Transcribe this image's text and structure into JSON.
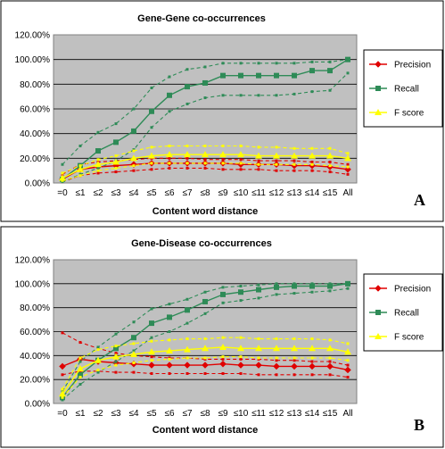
{
  "chart_data": [
    {
      "type": "line",
      "panel": "A",
      "title": "Gene-Gene co-occurrences",
      "xlabel": "Content word distance",
      "ylabel": "",
      "categories": [
        "=0",
        "≤1",
        "≤2",
        "≤3",
        "≤4",
        "≤5",
        "≤6",
        "≤7",
        "≤8",
        "≤9",
        "≤10",
        "≤11",
        "≤12",
        "≤13",
        "≤14",
        "≤15",
        "All"
      ],
      "y_ticks": [
        "0.00%",
        "20.00%",
        "40.00%",
        "60.00%",
        "80.00%",
        "100.00%",
        "120.00%"
      ],
      "ylim": [
        0,
        120
      ],
      "grid": true,
      "legend_position": "right",
      "series": [
        {
          "name": "Precision",
          "color": "#e00000",
          "marker": "diamond",
          "values": [
            3,
            11,
            13,
            14,
            15,
            16,
            16,
            16,
            16,
            16,
            15,
            15,
            15,
            14,
            14,
            13,
            11
          ],
          "upper": [
            7,
            15,
            17,
            18,
            19,
            20,
            20,
            20,
            19,
            19,
            19,
            18,
            18,
            18,
            17,
            17,
            15
          ],
          "lower": [
            1,
            6,
            8,
            9,
            10,
            11,
            12,
            12,
            12,
            11,
            11,
            11,
            10,
            10,
            10,
            9,
            7
          ]
        },
        {
          "name": "Recall",
          "color": "#2e8b57",
          "marker": "square",
          "values": [
            3,
            14,
            26,
            33,
            42,
            58,
            71,
            78,
            81,
            87,
            87,
            87,
            87,
            87,
            91,
            91,
            100
          ],
          "upper": [
            15,
            30,
            41,
            48,
            60,
            77,
            86,
            92,
            94,
            97,
            97,
            97,
            97,
            97,
            98,
            98,
            100
          ],
          "lower": [
            1,
            7,
            12,
            18,
            27,
            45,
            58,
            64,
            69,
            71,
            71,
            71,
            71,
            72,
            74,
            75,
            89
          ]
        },
        {
          "name": "F score",
          "color": "#ffff00",
          "marker": "triangle",
          "values": [
            4,
            11,
            15,
            17,
            20,
            22,
            23,
            23,
            23,
            23,
            23,
            22,
            22,
            22,
            22,
            22,
            20
          ],
          "upper": [
            8,
            14,
            19,
            22,
            26,
            29,
            30,
            30,
            30,
            30,
            30,
            29,
            29,
            28,
            28,
            28,
            24
          ],
          "lower": [
            2,
            6,
            10,
            12,
            14,
            16,
            16,
            16,
            16,
            16,
            16,
            15,
            15,
            15,
            15,
            14,
            13
          ]
        }
      ]
    },
    {
      "type": "line",
      "panel": "B",
      "title": "Gene-Disease co-occurrences",
      "xlabel": "Content word distance",
      "ylabel": "",
      "categories": [
        "=0",
        "≤1",
        "≤2",
        "≤3",
        "≤4",
        "≤5",
        "≤6",
        "≤7",
        "≤8",
        "≤9",
        "≤10",
        "≤11",
        "≤12",
        "≤13",
        "≤14",
        "≤15",
        "All"
      ],
      "y_ticks": [
        "0.00%",
        "20.00%",
        "40.00%",
        "60.00%",
        "80.00%",
        "100.00%",
        "120.00%"
      ],
      "ylim": [
        0,
        120
      ],
      "grid": true,
      "legend_position": "right",
      "series": [
        {
          "name": "Precision",
          "color": "#e00000",
          "marker": "diamond",
          "values": [
            31,
            37,
            35,
            34,
            33,
            32,
            32,
            32,
            32,
            33,
            32,
            32,
            31,
            31,
            31,
            31,
            28
          ],
          "upper": [
            59,
            51,
            46,
            42,
            40,
            39,
            38,
            38,
            37,
            37,
            37,
            37,
            36,
            36,
            35,
            35,
            32
          ],
          "lower": [
            24,
            27,
            27,
            26,
            26,
            25,
            25,
            25,
            25,
            25,
            25,
            24,
            24,
            24,
            24,
            24,
            22
          ]
        },
        {
          "name": "Recall",
          "color": "#2e8b57",
          "marker": "square",
          "values": [
            5,
            24,
            36,
            46,
            55,
            67,
            72,
            78,
            85,
            91,
            93,
            95,
            97,
            98,
            98,
            98,
            100
          ],
          "upper": [
            10,
            35,
            47,
            58,
            68,
            79,
            83,
            87,
            93,
            97,
            98,
            99,
            100,
            100,
            100,
            100,
            100
          ],
          "lower": [
            3,
            16,
            26,
            35,
            44,
            55,
            60,
            67,
            75,
            84,
            86,
            88,
            91,
            92,
            93,
            94,
            96
          ]
        },
        {
          "name": "F score",
          "color": "#ffff00",
          "marker": "triangle",
          "values": [
            8,
            29,
            36,
            39,
            41,
            43,
            44,
            45,
            46,
            47,
            46,
            46,
            46,
            46,
            46,
            46,
            43
          ],
          "upper": [
            12,
            38,
            45,
            48,
            50,
            52,
            53,
            54,
            54,
            55,
            55,
            54,
            54,
            54,
            54,
            53,
            50
          ],
          "lower": [
            5,
            22,
            28,
            32,
            34,
            36,
            37,
            38,
            38,
            39,
            39,
            38,
            38,
            38,
            38,
            38,
            36
          ]
        }
      ]
    }
  ]
}
